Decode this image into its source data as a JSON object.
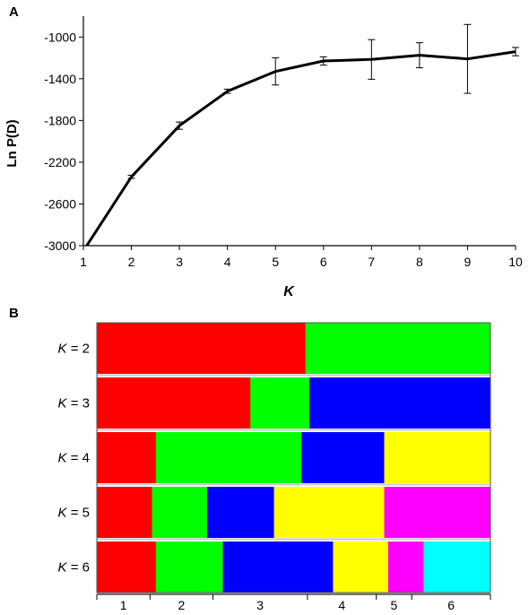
{
  "chart_data": [
    {
      "panel_label": "A",
      "type": "line",
      "xlabel": "K",
      "ylabel": "Ln P(D)",
      "x": [
        1,
        2,
        3,
        4,
        5,
        6,
        7,
        8,
        9,
        10
      ],
      "xlim": [
        1,
        10
      ],
      "ylim": [
        -3000,
        -800
      ],
      "yticks": [
        -1000,
        -1400,
        -1800,
        -2200,
        -2600,
        -3000
      ],
      "xticks": [
        1,
        2,
        3,
        4,
        5,
        6,
        7,
        8,
        9,
        10
      ],
      "series": [
        {
          "values": [
            -3050,
            -2340,
            -1850,
            -1520,
            -1330,
            -1230,
            -1215,
            -1175,
            -1210,
            -1140
          ],
          "error": [
            0,
            15,
            35,
            20,
            130,
            40,
            190,
            120,
            330,
            40
          ],
          "color": "#000000"
        }
      ],
      "grid": false
    },
    {
      "panel_label": "B",
      "type": "bar",
      "subtype": "stacked-admixture-plot",
      "rows": [
        {
          "prefix": "K",
          "value": "= 2",
          "segments": [
            {
              "color": "#ff0000",
              "fraction": 0.53
            },
            {
              "color": "#00ff00",
              "fraction": 0.47
            }
          ]
        },
        {
          "prefix": "K",
          "value": "= 3",
          "segments": [
            {
              "color": "#ff0000",
              "fraction": 0.39
            },
            {
              "color": "#00ff00",
              "fraction": 0.15
            },
            {
              "color": "#0000ff",
              "fraction": 0.46
            }
          ]
        },
        {
          "prefix": "K",
          "value": "= 4",
          "segments": [
            {
              "color": "#ff0000",
              "fraction": 0.15
            },
            {
              "color": "#00ff00",
              "fraction": 0.37
            },
            {
              "color": "#0000ff",
              "fraction": 0.21
            },
            {
              "color": "#ffff00",
              "fraction": 0.27
            }
          ]
        },
        {
          "prefix": "K",
          "value": "= 5",
          "segments": [
            {
              "color": "#ff0000",
              "fraction": 0.14
            },
            {
              "color": "#00ff00",
              "fraction": 0.14
            },
            {
              "color": "#0000ff",
              "fraction": 0.17
            },
            {
              "color": "#ffff00",
              "fraction": 0.28
            },
            {
              "color": "#ff00ff",
              "fraction": 0.27
            }
          ]
        },
        {
          "prefix": "K",
          "value": "= 6",
          "segments": [
            {
              "color": "#ff0000",
              "fraction": 0.15
            },
            {
              "color": "#00ff00",
              "fraction": 0.17
            },
            {
              "color": "#0000ff",
              "fraction": 0.28
            },
            {
              "color": "#ffff00",
              "fraction": 0.14
            },
            {
              "color": "#ff00ff",
              "fraction": 0.09
            },
            {
              "color": "#00ffff",
              "fraction": 0.17
            }
          ]
        }
      ],
      "groups": [
        {
          "label": "1",
          "fraction": 0.135
        },
        {
          "label": "2",
          "fraction": 0.16
        },
        {
          "label": "3",
          "fraction": 0.24
        },
        {
          "label": "4",
          "fraction": 0.175
        },
        {
          "label": "5",
          "fraction": 0.09
        },
        {
          "label": "6",
          "fraction": 0.2
        }
      ]
    }
  ]
}
